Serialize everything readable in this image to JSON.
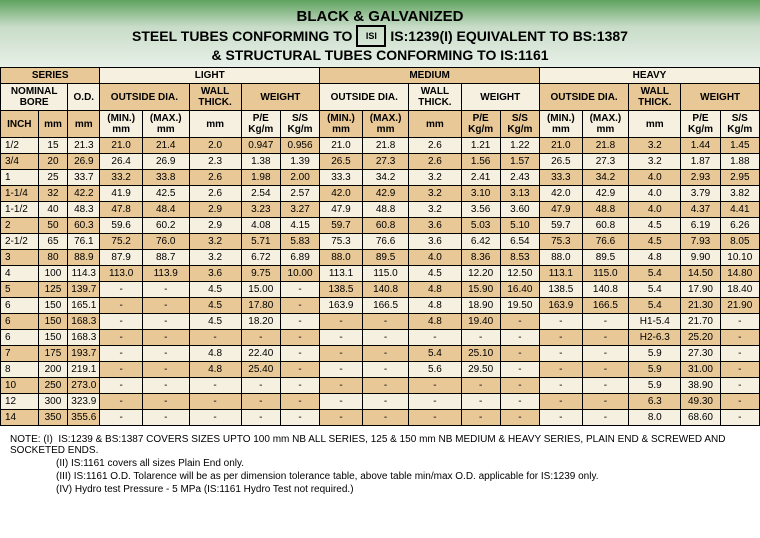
{
  "header": {
    "line1": "BLACK & GALVANIZED",
    "line2a": "STEEL TUBES CONFORMING TO",
    "line2b": "IS:1239(I) EQUIVALENT TO BS:1387",
    "line3": "& STRUCTURAL TUBES CONFORMING TO IS:1161",
    "isi": "ISI"
  },
  "groupHeaders": {
    "series": "SERIES",
    "light": "LIGHT",
    "medium": "MEDIUM",
    "heavy": "HEAVY"
  },
  "sub1": {
    "nominal": "NOMINAL BORE",
    "od": "O.D.",
    "odia": "OUTSIDE DIA.",
    "wall": "WALL THICK.",
    "weight": "WEIGHT"
  },
  "sub2": {
    "inch": "INCH",
    "mm": "mm",
    "min": "(MIN.) mm",
    "max": "(MAX.) mm",
    "pe": "P/E Kg/m",
    "ss": "S/S Kg/m"
  },
  "rows": [
    {
      "inch": "1/2",
      "mm": "15",
      "od": "21.3",
      "l": [
        "21.0",
        "21.4",
        "2.0",
        "0.947",
        "0.956"
      ],
      "m": [
        "21.0",
        "21.8",
        "2.6",
        "1.21",
        "1.22"
      ],
      "h": [
        "21.0",
        "21.8",
        "3.2",
        "1.44",
        "1.45"
      ]
    },
    {
      "inch": "3/4",
      "mm": "20",
      "od": "26.9",
      "l": [
        "26.4",
        "26.9",
        "2.3",
        "1.38",
        "1.39"
      ],
      "m": [
        "26.5",
        "27.3",
        "2.6",
        "1.56",
        "1.57"
      ],
      "h": [
        "26.5",
        "27.3",
        "3.2",
        "1.87",
        "1.88"
      ]
    },
    {
      "inch": "1",
      "mm": "25",
      "od": "33.7",
      "l": [
        "33.2",
        "33.8",
        "2.6",
        "1.98",
        "2.00"
      ],
      "m": [
        "33.3",
        "34.2",
        "3.2",
        "2.41",
        "2.43"
      ],
      "h": [
        "33.3",
        "34.2",
        "4.0",
        "2.93",
        "2.95"
      ]
    },
    {
      "inch": "1-1/4",
      "mm": "32",
      "od": "42.2",
      "l": [
        "41.9",
        "42.5",
        "2.6",
        "2.54",
        "2.57"
      ],
      "m": [
        "42.0",
        "42.9",
        "3.2",
        "3.10",
        "3.13"
      ],
      "h": [
        "42.0",
        "42.9",
        "4.0",
        "3.79",
        "3.82"
      ]
    },
    {
      "inch": "1-1/2",
      "mm": "40",
      "od": "48.3",
      "l": [
        "47.8",
        "48.4",
        "2.9",
        "3.23",
        "3.27"
      ],
      "m": [
        "47.9",
        "48.8",
        "3.2",
        "3.56",
        "3.60"
      ],
      "h": [
        "47.9",
        "48.8",
        "4.0",
        "4.37",
        "4.41"
      ]
    },
    {
      "inch": "2",
      "mm": "50",
      "od": "60.3",
      "l": [
        "59.6",
        "60.2",
        "2.9",
        "4.08",
        "4.15"
      ],
      "m": [
        "59.7",
        "60.8",
        "3.6",
        "5.03",
        "5.10"
      ],
      "h": [
        "59.7",
        "60.8",
        "4.5",
        "6.19",
        "6.26"
      ]
    },
    {
      "inch": "2-1/2",
      "mm": "65",
      "od": "76.1",
      "l": [
        "75.2",
        "76.0",
        "3.2",
        "5.71",
        "5.83"
      ],
      "m": [
        "75.3",
        "76.6",
        "3.6",
        "6.42",
        "6.54"
      ],
      "h": [
        "75.3",
        "76.6",
        "4.5",
        "7.93",
        "8.05"
      ]
    },
    {
      "inch": "3",
      "mm": "80",
      "od": "88.9",
      "l": [
        "87.9",
        "88.7",
        "3.2",
        "6.72",
        "6.89"
      ],
      "m": [
        "88.0",
        "89.5",
        "4.0",
        "8.36",
        "8.53"
      ],
      "h": [
        "88.0",
        "89.5",
        "4.8",
        "9.90",
        "10.10"
      ]
    },
    {
      "inch": "4",
      "mm": "100",
      "od": "114.3",
      "l": [
        "113.0",
        "113.9",
        "3.6",
        "9.75",
        "10.00"
      ],
      "m": [
        "113.1",
        "115.0",
        "4.5",
        "12.20",
        "12.50"
      ],
      "h": [
        "113.1",
        "115.0",
        "5.4",
        "14.50",
        "14.80"
      ]
    },
    {
      "inch": "5",
      "mm": "125",
      "od": "139.7",
      "l": [
        "-",
        "-",
        "4.5",
        "15.00",
        "-"
      ],
      "m": [
        "138.5",
        "140.8",
        "4.8",
        "15.90",
        "16.40"
      ],
      "h": [
        "138.5",
        "140.8",
        "5.4",
        "17.90",
        "18.40"
      ]
    },
    {
      "inch": "6",
      "mm": "150",
      "od": "165.1",
      "l": [
        "-",
        "-",
        "4.5",
        "17.80",
        "-"
      ],
      "m": [
        "163.9",
        "166.5",
        "4.8",
        "18.90",
        "19.50"
      ],
      "h": [
        "163.9",
        "166.5",
        "5.4",
        "21.30",
        "21.90"
      ]
    },
    {
      "inch": "6",
      "mm": "150",
      "od": "168.3",
      "l": [
        "-",
        "-",
        "4.5",
        "18.20",
        "-"
      ],
      "m": [
        "-",
        "-",
        "4.8",
        "19.40",
        "-"
      ],
      "h": [
        "-",
        "-",
        "H1-5.4",
        "21.70",
        "-"
      ]
    },
    {
      "inch": "6",
      "mm": "150",
      "od": "168.3",
      "l": [
        "-",
        "-",
        "-",
        "-",
        "-"
      ],
      "m": [
        "-",
        "-",
        "-",
        "-",
        "-"
      ],
      "h": [
        "-",
        "-",
        "H2-6.3",
        "25.20",
        "-"
      ]
    },
    {
      "inch": "7",
      "mm": "175",
      "od": "193.7",
      "l": [
        "-",
        "-",
        "4.8",
        "22.40",
        "-"
      ],
      "m": [
        "-",
        "-",
        "5.4",
        "25.10",
        "-"
      ],
      "h": [
        "-",
        "-",
        "5.9",
        "27.30",
        "-"
      ]
    },
    {
      "inch": "8",
      "mm": "200",
      "od": "219.1",
      "l": [
        "-",
        "-",
        "4.8",
        "25.40",
        "-"
      ],
      "m": [
        "-",
        "-",
        "5.6",
        "29.50",
        "-"
      ],
      "h": [
        "-",
        "-",
        "5.9",
        "31.00",
        "-"
      ]
    },
    {
      "inch": "10",
      "mm": "250",
      "od": "273.0",
      "l": [
        "-",
        "-",
        "-",
        "-",
        "-"
      ],
      "m": [
        "-",
        "-",
        "-",
        "-",
        "-"
      ],
      "h": [
        "-",
        "-",
        "5.9",
        "38.90",
        "-"
      ]
    },
    {
      "inch": "12",
      "mm": "300",
      "od": "323.9",
      "l": [
        "-",
        "-",
        "-",
        "-",
        "-"
      ],
      "m": [
        "-",
        "-",
        "-",
        "-",
        "-"
      ],
      "h": [
        "-",
        "-",
        "6.3",
        "49.30",
        "-"
      ]
    },
    {
      "inch": "14",
      "mm": "350",
      "od": "355.6",
      "l": [
        "-",
        "-",
        "-",
        "-",
        "-"
      ],
      "m": [
        "-",
        "-",
        "-",
        "-",
        "-"
      ],
      "h": [
        "-",
        "-",
        "8.0",
        "68.60",
        "-"
      ]
    }
  ],
  "notes": {
    "n1a": "NOTE: (I)",
    "n1b": "IS:1239 & BS:1387 COVERS SIZES UPTO 100 mm NB ALL SERIES, 125 & 150 mm NB MEDIUM & HEAVY SERIES, PLAIN END & SCREWED AND SOCKETED ENDS.",
    "n2": "(II)   IS:1161 covers all sizes Plain End only.",
    "n3": "(III)  IS:1161 O.D. Tolarence will be as per dimension tolerance table, above table min/max O.D. applicable for IS:1239 only.",
    "n4": "(IV)  Hydro test Pressure - 5 MPa (IS:1161 Hydro Test not required.)"
  },
  "colors": {
    "orange": "#e8c896",
    "pale": "#f5f0e0",
    "headerGrad": "#5fa35f"
  }
}
